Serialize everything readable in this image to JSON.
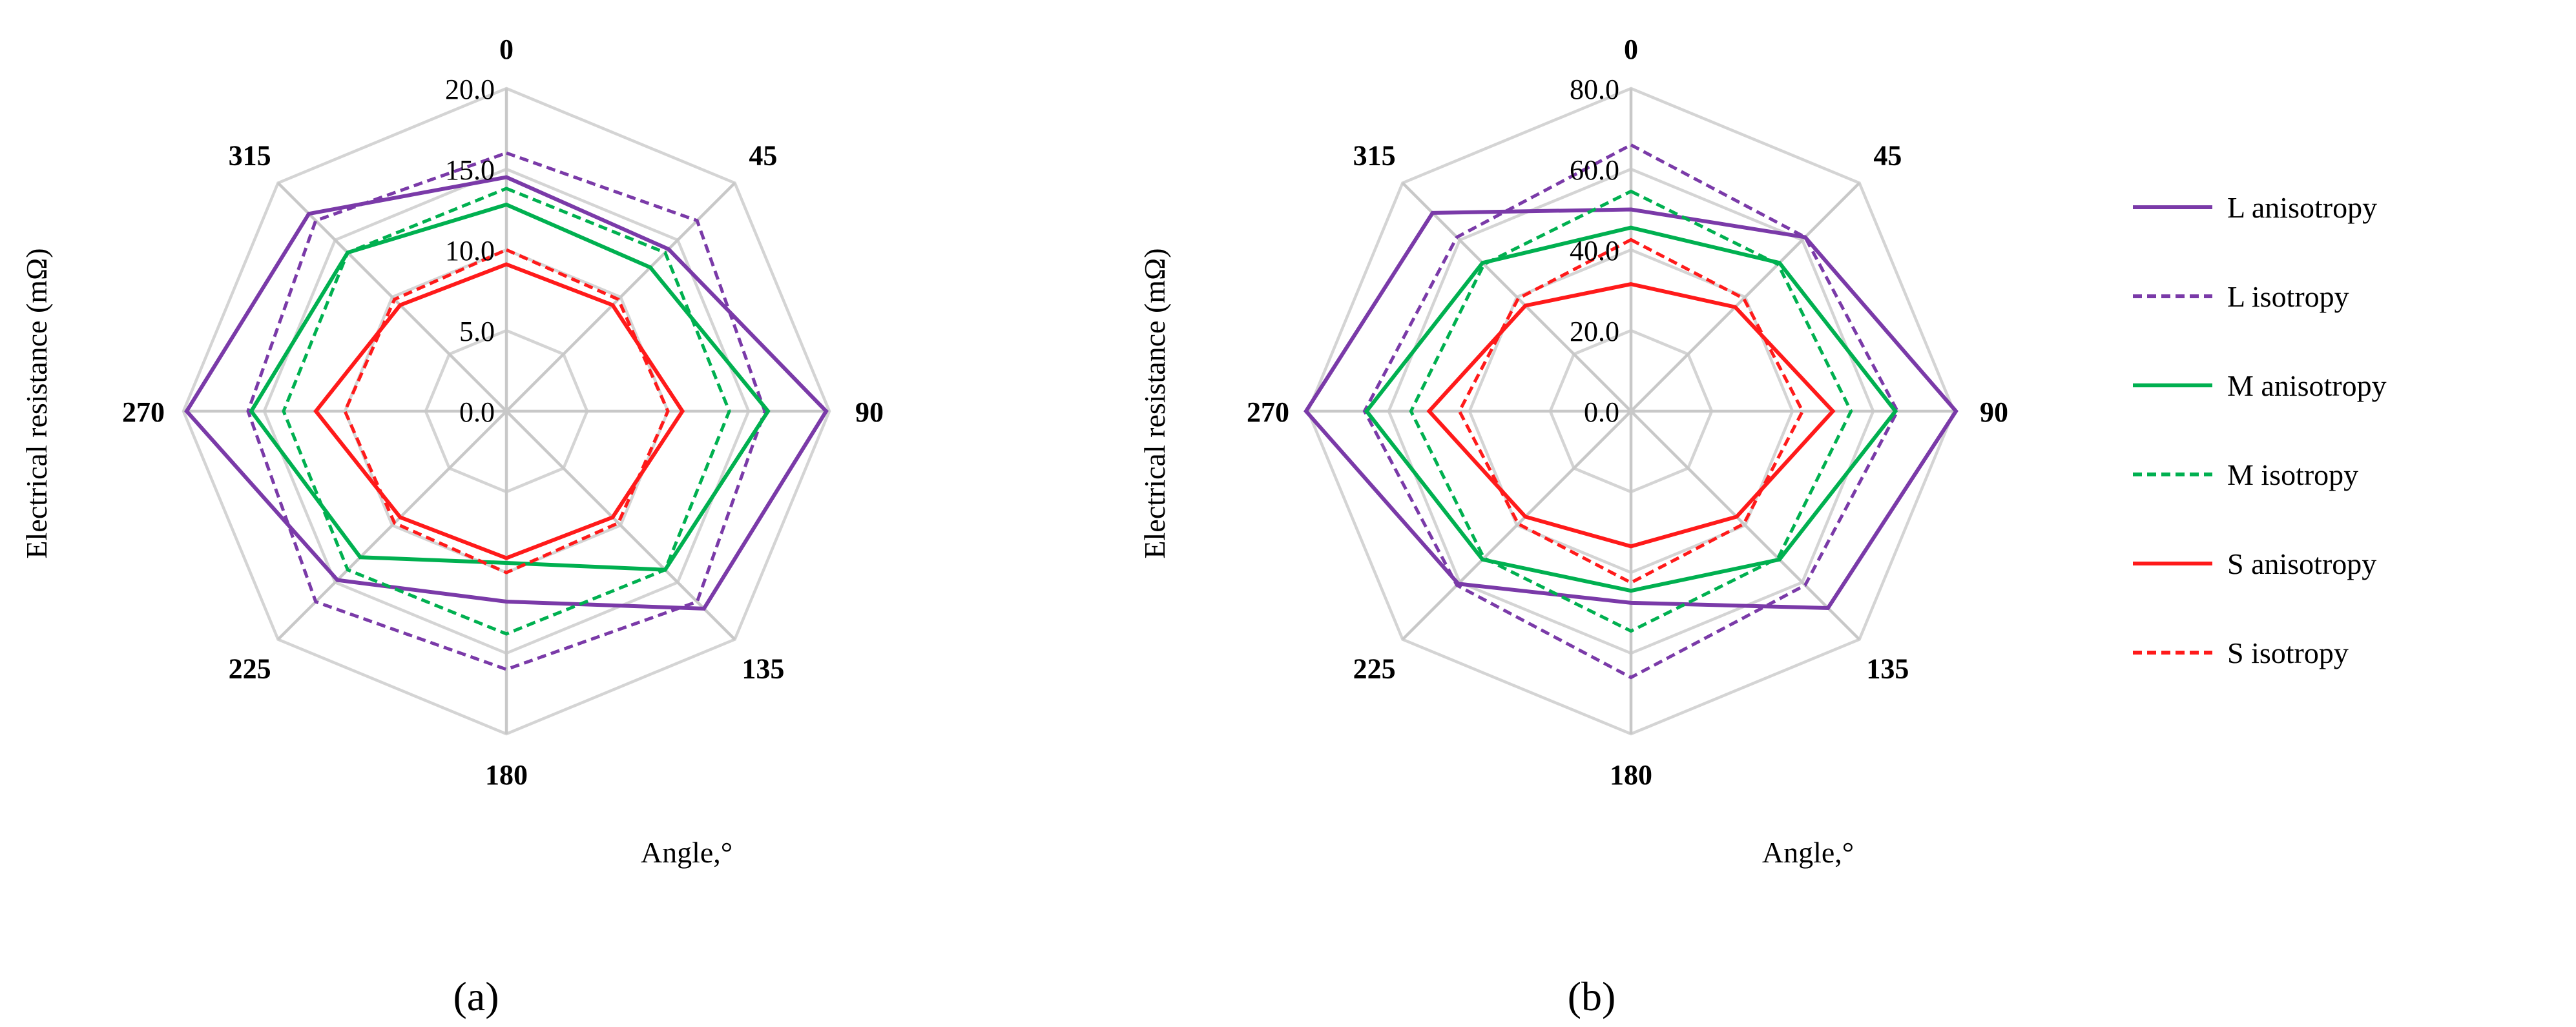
{
  "colors": {
    "L": "#7a3aa8",
    "M": "#00b050",
    "S": "#ff1a1a",
    "grid": "#d4d4d4"
  },
  "legend": [
    {
      "label": "L anisotropy",
      "color": "#7a3aa8",
      "dashed": false
    },
    {
      "label": "L isotropy",
      "color": "#7a3aa8",
      "dashed": true
    },
    {
      "label": "M anisotropy",
      "color": "#00b050",
      "dashed": false
    },
    {
      "label": "M isotropy",
      "color": "#00b050",
      "dashed": true
    },
    {
      "label": "S anisotropy",
      "color": "#ff1a1a",
      "dashed": false
    },
    {
      "label": "S isotropy",
      "color": "#ff1a1a",
      "dashed": true
    }
  ],
  "chart_data": [
    {
      "type": "radar",
      "panel_label": "(a)",
      "ylabel": "Electrical resistance (mΩ)",
      "xlabel": "Angle,°",
      "categories": [
        "0",
        "45",
        "90",
        "135",
        "180",
        "225",
        "270",
        "315"
      ],
      "ticks": [
        "0.0",
        "5.0",
        "10.0",
        "15.0",
        "20.0"
      ],
      "rlim": [
        0,
        20
      ],
      "grid": true,
      "series": [
        {
          "name": "L anisotropy",
          "dashed": false,
          "color": "#7a3aa8",
          "values": [
            14.5,
            14.2,
            19.8,
            17.3,
            11.8,
            14.8,
            19.8,
            17.3
          ]
        },
        {
          "name": "L isotropy",
          "dashed": true,
          "color": "#7a3aa8",
          "values": [
            16.0,
            16.7,
            16.0,
            16.7,
            16.0,
            16.7,
            16.0,
            16.7
          ]
        },
        {
          "name": "M anisotropy",
          "dashed": false,
          "color": "#00b050",
          "values": [
            12.8,
            12.6,
            16.2,
            13.9,
            9.4,
            12.8,
            15.8,
            13.9
          ]
        },
        {
          "name": "M isotropy",
          "dashed": true,
          "color": "#00b050",
          "values": [
            13.8,
            13.9,
            13.8,
            13.9,
            13.8,
            13.9,
            13.8,
            13.9
          ]
        },
        {
          "name": "S anisotropy",
          "dashed": false,
          "color": "#ff1a1a",
          "values": [
            9.1,
            9.3,
            10.9,
            9.3,
            9.1,
            9.3,
            11.8,
            9.3
          ]
        },
        {
          "name": "S isotropy",
          "dashed": true,
          "color": "#ff1a1a",
          "values": [
            10.0,
            9.8,
            10.0,
            9.8,
            10.0,
            9.8,
            10.0,
            9.8
          ]
        }
      ]
    },
    {
      "type": "radar",
      "panel_label": "(b)",
      "ylabel": "Electrical resistance (mΩ)",
      "xlabel": "Angle,°",
      "categories": [
        "0",
        "45",
        "90",
        "135",
        "180",
        "225",
        "270",
        "315"
      ],
      "ticks": [
        "0.0",
        "20.0",
        "40.0",
        "60.0",
        "80.0"
      ],
      "rlim": [
        0,
        80
      ],
      "grid": true,
      "series": [
        {
          "name": "L anisotropy",
          "dashed": false,
          "color": "#7a3aa8",
          "values": [
            50.0,
            61.0,
            80.5,
            69.0,
            47.5,
            60.5,
            80.5,
            69.5
          ]
        },
        {
          "name": "L isotropy",
          "dashed": true,
          "color": "#7a3aa8",
          "values": [
            66.0,
            61.0,
            66.0,
            61.0,
            66.0,
            61.0,
            66.0,
            61.0
          ]
        },
        {
          "name": "M anisotropy",
          "dashed": false,
          "color": "#00b050",
          "values": [
            45.5,
            52.0,
            65.5,
            52.0,
            44.5,
            52.0,
            65.5,
            52.0
          ]
        },
        {
          "name": "M isotropy",
          "dashed": true,
          "color": "#00b050",
          "values": [
            54.5,
            51.5,
            54.5,
            51.5,
            54.5,
            51.5,
            54.5,
            51.5
          ]
        },
        {
          "name": "S anisotropy",
          "dashed": false,
          "color": "#ff1a1a",
          "values": [
            31.5,
            36.5,
            50.0,
            37.0,
            33.5,
            37.0,
            50.0,
            37.0
          ]
        },
        {
          "name": "S isotropy",
          "dashed": true,
          "color": "#ff1a1a",
          "values": [
            42.5,
            39.5,
            42.5,
            39.5,
            42.5,
            39.5,
            42.5,
            39.5
          ]
        }
      ]
    }
  ]
}
